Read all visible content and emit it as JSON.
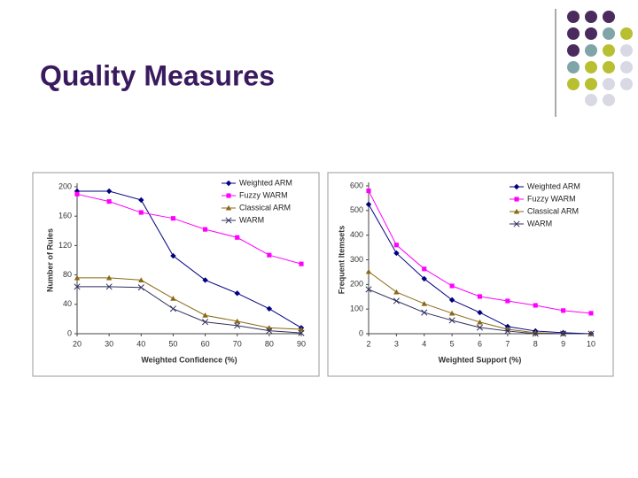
{
  "slide": {
    "title": "Quality Measures"
  },
  "chart_data": [
    {
      "type": "line",
      "xlabel": "Weighted Confidence (%)",
      "ylabel": "Number of Rules",
      "x": [
        20,
        30,
        40,
        50,
        60,
        70,
        80,
        90
      ],
      "xlim": [
        20,
        90
      ],
      "xticks": [
        20,
        30,
        40,
        50,
        60,
        70,
        80,
        90
      ],
      "ylim": [
        0,
        200
      ],
      "yticks": [
        0,
        40,
        80,
        120,
        160,
        200
      ],
      "legend": "upper right",
      "series": [
        {
          "name": "Weighted ARM",
          "color": "#000080",
          "marker": "diamond",
          "values": [
            194,
            194,
            182,
            106,
            73,
            55,
            34,
            8
          ]
        },
        {
          "name": "Fuzzy WARM",
          "color": "#ff00ff",
          "marker": "square",
          "values": [
            190,
            180,
            165,
            157,
            142,
            131,
            107,
            95
          ]
        },
        {
          "name": "Classical ARM",
          "color": "#8b6914",
          "marker": "triangle",
          "values": [
            76,
            76,
            73,
            48,
            25,
            17,
            8,
            6
          ]
        },
        {
          "name": "WARM",
          "color": "#2f2f5f",
          "marker": "x",
          "values": [
            64,
            64,
            63,
            34,
            16,
            11,
            4,
            1
          ]
        }
      ]
    },
    {
      "type": "line",
      "xlabel": "Weighted Support (%)",
      "ylabel": "Frequent Itemsets",
      "x": [
        2,
        3,
        4,
        5,
        6,
        7,
        8,
        9,
        10
      ],
      "xlim": [
        2,
        10
      ],
      "xticks": [
        2,
        3,
        4,
        5,
        6,
        7,
        8,
        9,
        10
      ],
      "ylim": [
        0,
        600
      ],
      "yticks": [
        0,
        100,
        200,
        300,
        400,
        500,
        600
      ],
      "legend": "upper right",
      "series": [
        {
          "name": "Weighted ARM",
          "color": "#000080",
          "marker": "diamond",
          "values": [
            525,
            327,
            223,
            137,
            86,
            29,
            11,
            4,
            0
          ]
        },
        {
          "name": "Fuzzy WARM",
          "color": "#ff00ff",
          "marker": "square",
          "values": [
            580,
            360,
            263,
            194,
            151,
            133,
            115,
            94,
            83
          ]
        },
        {
          "name": "Classical ARM",
          "color": "#8b6914",
          "marker": "triangle",
          "values": [
            252,
            169,
            122,
            83,
            47,
            18,
            4,
            0,
            0
          ]
        },
        {
          "name": "WARM",
          "color": "#2f2f5f",
          "marker": "x",
          "values": [
            180,
            133,
            86,
            54,
            25,
            11,
            0,
            0,
            0
          ]
        }
      ]
    }
  ]
}
